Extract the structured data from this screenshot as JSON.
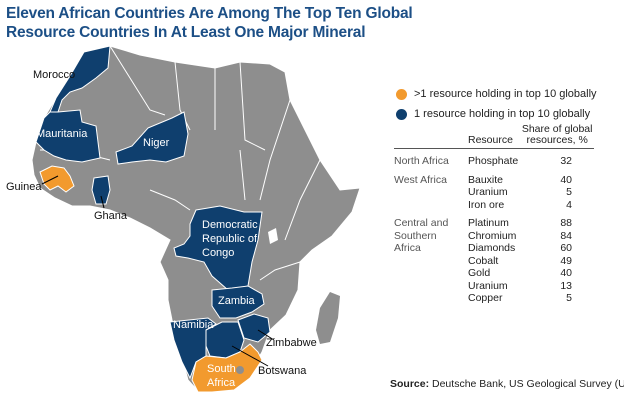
{
  "title": {
    "line1": "Eleven African Countries Are Among The Top Ten Global",
    "line2": "Resource Countries In At Least One Major Mineral"
  },
  "colors": {
    "one_holding": "#0f3f6e",
    "multi_holding": "#f29a2e",
    "other_land": "#8e8e8e",
    "border": "#ffffff",
    "title": "#1c4f86"
  },
  "legend": [
    {
      "label": ">1 resource holding in top 10 globally",
      "color": "#f29a2e"
    },
    {
      "label": "1 resource holding in top 10 globally",
      "color": "#0f3f6e"
    }
  ],
  "map_labels": {
    "morocco": "Morocco",
    "mauritania": "Mauritania",
    "niger": "Niger",
    "guinea": "Guinea",
    "ghana": "Ghana",
    "drc": "Democratic Republic of Congo",
    "zambia": "Zambia",
    "zimbabwe": "Zimbabwe",
    "namibia": "Namibia",
    "botswana": "Botswana",
    "south_africa": "South Africa"
  },
  "drc_lines": [
    "Democratic",
    "Republic of",
    "Congo"
  ],
  "south_africa_lines": [
    "South",
    "Africa"
  ],
  "table": {
    "col_resource": "Resource",
    "col_share": "Share of global resources, %",
    "col_share_line1": "Share of global",
    "col_share_line2": "resources, %",
    "groups": [
      {
        "region": "North Africa",
        "rows": [
          {
            "resource": "Phosphate",
            "share": "32"
          }
        ]
      },
      {
        "region": "West Africa",
        "rows": [
          {
            "resource": "Bauxite",
            "share": "40"
          },
          {
            "resource": "Uranium",
            "share": "5"
          },
          {
            "resource": "Iron ore",
            "share": "4"
          }
        ]
      },
      {
        "region": "Central and Southern Africa",
        "rows": [
          {
            "resource": "Platinum",
            "share": "88"
          },
          {
            "resource": "Chromium",
            "share": "84"
          },
          {
            "resource": "Diamonds",
            "share": "60"
          },
          {
            "resource": "Cobalt",
            "share": "49"
          },
          {
            "resource": "Gold",
            "share": "40"
          },
          {
            "resource": "Uranium",
            "share": "13"
          },
          {
            "resource": "Copper",
            "share": "5"
          }
        ]
      }
    ]
  },
  "source": {
    "label": "Source:",
    "text": " Deutsche Bank, US Geological Survey (USGS),"
  }
}
